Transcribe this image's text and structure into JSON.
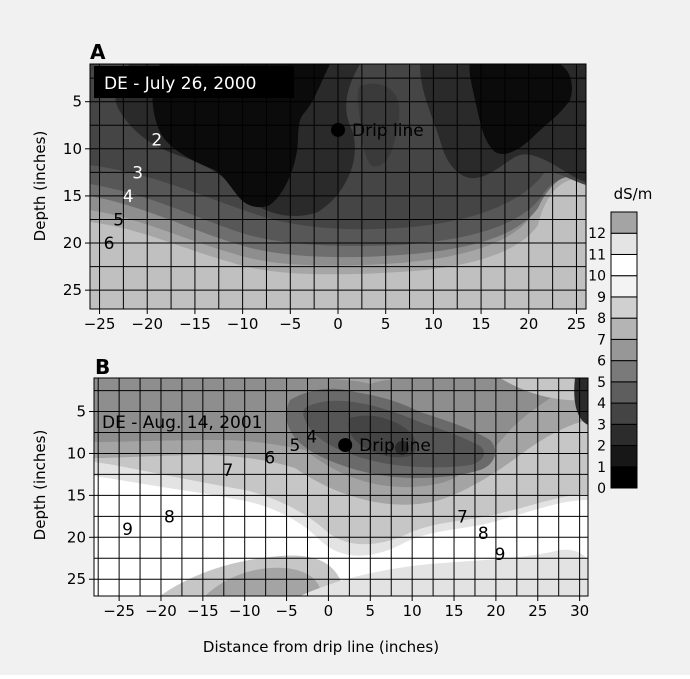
{
  "chart_data": [
    {
      "type": "heatmap",
      "panel_label": "A",
      "inset_title": "DE - July 26, 2000",
      "ylabel": "Depth (inches)",
      "xlabel": "",
      "x_ticks": [
        "−25",
        "−20",
        "−15",
        "−10",
        "−5",
        "0",
        "5",
        "10",
        "15",
        "20",
        "25"
      ],
      "y_ticks": [
        "5",
        "10",
        "15",
        "20",
        "25"
      ],
      "xlim": [
        -26,
        26
      ],
      "ylim": [
        1,
        27
      ],
      "marker": {
        "label": "Drip line",
        "x": 0,
        "y": 8
      },
      "contour_labels": [
        {
          "text": "2",
          "x": -19,
          "y": 9,
          "color": "#ffffff"
        },
        {
          "text": "3",
          "x": -21,
          "y": 12.5,
          "color": "#ffffff"
        },
        {
          "text": "4",
          "x": -22,
          "y": 15,
          "color": "#ffffff"
        },
        {
          "text": "5",
          "x": -23,
          "y": 17.5,
          "color": "#000000"
        },
        {
          "text": "6",
          "x": -24,
          "y": 20,
          "color": "#000000"
        }
      ]
    },
    {
      "type": "heatmap",
      "panel_label": "B",
      "inset_title": "DE - Aug. 14, 2001",
      "ylabel": "Depth (inches)",
      "xlabel": "Distance from drip line (inches)",
      "x_ticks": [
        "−25",
        "−20",
        "−15",
        "−10",
        "−5",
        "0",
        "5",
        "10",
        "15",
        "20",
        "25",
        "30"
      ],
      "y_ticks": [
        "5",
        "10",
        "15",
        "20",
        "25"
      ],
      "xlim": [
        -28,
        31
      ],
      "ylim": [
        1,
        27
      ],
      "marker": {
        "label": "Drip line",
        "x": 2,
        "y": 9
      },
      "contour_labels": [
        {
          "text": "9",
          "x": -24,
          "y": 19
        },
        {
          "text": "8",
          "x": -19,
          "y": 17.5
        },
        {
          "text": "7",
          "x": -12,
          "y": 12
        },
        {
          "text": "6",
          "x": -7,
          "y": 10.5
        },
        {
          "text": "5",
          "x": -4,
          "y": 9
        },
        {
          "text": "4",
          "x": -2,
          "y": 8
        },
        {
          "text": "7",
          "x": 16,
          "y": 17.5
        },
        {
          "text": "8",
          "x": 18.5,
          "y": 19.5
        },
        {
          "text": "9",
          "x": 20.5,
          "y": 22
        }
      ]
    }
  ],
  "colorbar": {
    "unit": "dS/m",
    "levels": [
      "0",
      "1",
      "2",
      "3",
      "4",
      "5",
      "6",
      "7",
      "8",
      "9",
      "10",
      "11",
      "12"
    ],
    "colors": [
      "#000000",
      "#171717",
      "#2c2c2c",
      "#444444",
      "#5e5e5e",
      "#7a7a7a",
      "#979797",
      "#b4b4b4",
      "#d0d0d0",
      "#f3f3f3",
      "#ffffff",
      "#e4e4e4",
      "#a4a4a4"
    ]
  }
}
